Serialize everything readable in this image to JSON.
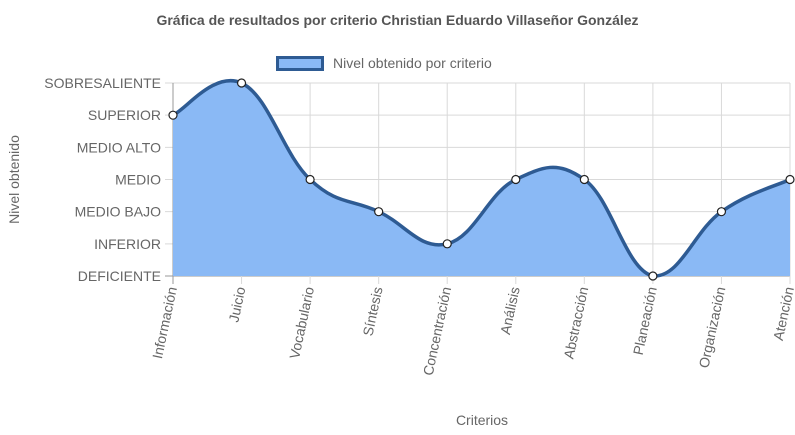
{
  "chart_data": {
    "type": "line",
    "title": "Gráfica de resultados por criterio Christian Eduardo Villaseñor González",
    "xlabel": "Criterios",
    "ylabel": "Nivel obtenido",
    "y_levels": [
      "DEFICIENTE",
      "INFERIOR",
      "MEDIO BAJO",
      "MEDIO",
      "MEDIO ALTO",
      "SUPERIOR",
      "SOBRESALIENTE"
    ],
    "categories": [
      "Información",
      "Juicio",
      "Vocabulario",
      "Síntesis",
      "Concentración",
      "Análisis",
      "Abstracción",
      "Planeación",
      "Organización",
      "Atención"
    ],
    "series": [
      {
        "name": "Nivel obtenido por criterio",
        "values": [
          "SUPERIOR",
          "SOBRESALIENTE",
          "MEDIO",
          "MEDIO BAJO",
          "INFERIOR",
          "MEDIO",
          "MEDIO",
          "DEFICIENTE",
          "MEDIO BAJO",
          "MEDIO"
        ]
      }
    ],
    "fill": true,
    "grid": true,
    "legend": "top",
    "colors": {
      "fill": "#8ab9f5",
      "line": "#2e5b93",
      "point_fill": "#ffffff",
      "grid": "#d9d9d9",
      "axis": "#999999"
    }
  }
}
